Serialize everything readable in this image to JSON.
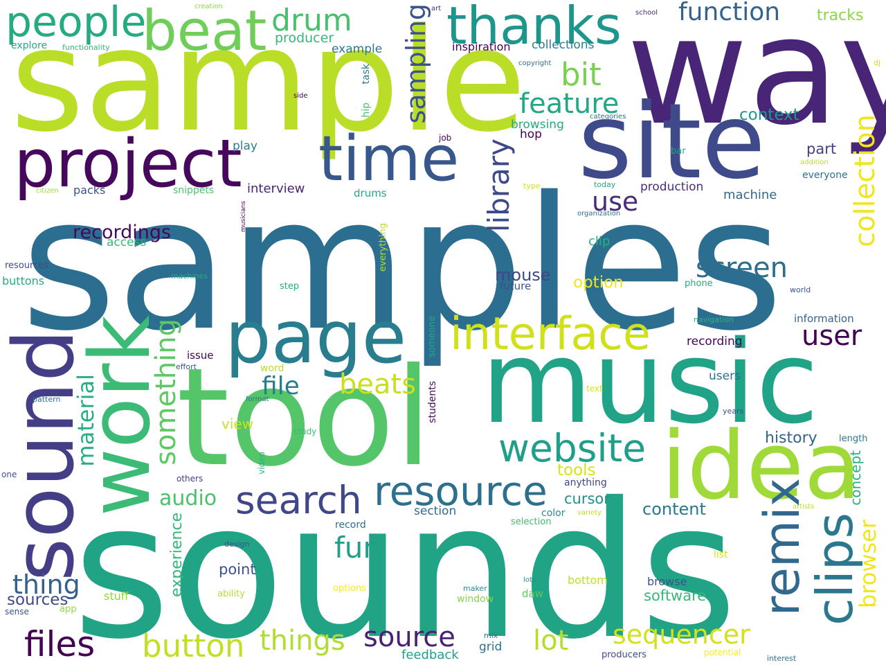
{
  "words": [
    {
      "text": "samples",
      "color": "#2c6e8f"
    },
    {
      "text": "sounds",
      "color": "#21a386"
    },
    {
      "text": "sample",
      "color": "#bade28"
    },
    {
      "text": "tool",
      "color": "#54c568"
    },
    {
      "text": "way",
      "color": "#482576"
    },
    {
      "text": "music",
      "color": "#20a386"
    },
    {
      "text": "site",
      "color": "#3e4a89"
    },
    {
      "text": "idea",
      "color": "#a0da39"
    },
    {
      "text": "work",
      "color": "#3bbb75"
    },
    {
      "text": "sound",
      "color": "#433e85"
    },
    {
      "text": "project",
      "color": "#46085c"
    },
    {
      "text": "page",
      "color": "#287d8e"
    },
    {
      "text": "time",
      "color": "#38588c"
    },
    {
      "text": "thanks",
      "color": "#1f968b"
    },
    {
      "text": "beat",
      "color": "#6ece58"
    },
    {
      "text": "people",
      "color": "#25ab82"
    },
    {
      "text": "remix",
      "color": "#31688e"
    },
    {
      "text": "clips",
      "color": "#2a788e"
    },
    {
      "text": "interface",
      "color": "#d0e11c"
    },
    {
      "text": "resource",
      "color": "#2d708e"
    },
    {
      "text": "search",
      "color": "#3f4788"
    },
    {
      "text": "website",
      "color": "#1f9e89"
    },
    {
      "text": "files",
      "color": "#440154"
    },
    {
      "text": "button",
      "color": "#c2df23"
    },
    {
      "text": "drum",
      "color": "#48c16e"
    },
    {
      "text": "feature",
      "color": "#22a884"
    },
    {
      "text": "bit",
      "color": "#7ad151"
    },
    {
      "text": "function",
      "color": "#33638d"
    },
    {
      "text": "sampling",
      "color": "#3b528b"
    },
    {
      "text": "library",
      "color": "#3e4989"
    },
    {
      "text": "collection",
      "color": "#f1e51d"
    },
    {
      "text": "screen",
      "color": "#2f6c8e"
    },
    {
      "text": "user",
      "color": "#440154"
    },
    {
      "text": "use",
      "color": "#472c7a"
    },
    {
      "text": "something",
      "color": "#5ec962"
    },
    {
      "text": "material",
      "color": "#26ad81"
    },
    {
      "text": "beats",
      "color": "#c8e020"
    },
    {
      "text": "file",
      "color": "#277f8e"
    },
    {
      "text": "fun",
      "color": "#1fa187"
    },
    {
      "text": "source",
      "color": "#482374"
    },
    {
      "text": "sequencer",
      "color": "#d2e21b"
    },
    {
      "text": "lot",
      "color": "#b5de2b"
    },
    {
      "text": "things",
      "color": "#b0dd2f"
    },
    {
      "text": "thing",
      "color": "#34618d"
    },
    {
      "text": "audio",
      "color": "#4ac16d"
    },
    {
      "text": "browser",
      "color": "#f1e51d"
    },
    {
      "text": "recordings",
      "color": "#46085c"
    },
    {
      "text": "experience",
      "color": "#35b779"
    },
    {
      "text": "sources",
      "color": "#3e4989"
    },
    {
      "text": "history",
      "color": "#33638d"
    },
    {
      "text": "tools",
      "color": "#d5e21a"
    },
    {
      "text": "content",
      "color": "#2a788e"
    },
    {
      "text": "mouse",
      "color": "#3f4788"
    },
    {
      "text": "context",
      "color": "#1f988b"
    },
    {
      "text": "part",
      "color": "#424086"
    },
    {
      "text": "tracks",
      "color": "#8bd646"
    },
    {
      "text": "option",
      "color": "#f1e51d"
    },
    {
      "text": "cursor",
      "color": "#218f8d"
    },
    {
      "text": "point",
      "color": "#3b528b"
    },
    {
      "text": "software",
      "color": "#37b878"
    },
    {
      "text": "concept",
      "color": "#2cb17e"
    },
    {
      "text": "producer",
      "color": "#35b779"
    },
    {
      "text": "view",
      "color": "#cae11f"
    },
    {
      "text": "machine",
      "color": "#31688e"
    },
    {
      "text": "production",
      "color": "#472f7d"
    },
    {
      "text": "collections",
      "color": "#26818e"
    },
    {
      "text": "example",
      "color": "#2a788e"
    },
    {
      "text": "inspiration",
      "color": "#440154"
    },
    {
      "text": "interview",
      "color": "#482475"
    },
    {
      "text": "recording",
      "color": "#450559"
    },
    {
      "text": "users",
      "color": "#2d708e"
    },
    {
      "text": "browsing",
      "color": "#25ab82"
    },
    {
      "text": "hop",
      "color": "#440154"
    },
    {
      "text": "play",
      "color": "#287d8e"
    },
    {
      "text": "clip",
      "color": "#29af7f"
    },
    {
      "text": "grid",
      "color": "#2c728e"
    },
    {
      "text": "feedback",
      "color": "#1fa088"
    },
    {
      "text": "drums",
      "color": "#22a884"
    },
    {
      "text": "buttons",
      "color": "#25ac82"
    },
    {
      "text": "packs",
      "color": "#3b528b"
    },
    {
      "text": "access",
      "color": "#35b779"
    },
    {
      "text": "section",
      "color": "#2e6e8e"
    },
    {
      "text": "tab",
      "color": "#2d708e"
    },
    {
      "text": "stuff",
      "color": "#8fd744"
    },
    {
      "text": "snippets",
      "color": "#4ec36b"
    },
    {
      "text": "everything",
      "color": "#b8de29"
    },
    {
      "text": "someone",
      "color": "#22a785"
    },
    {
      "text": "students",
      "color": "#46085c"
    },
    {
      "text": "future",
      "color": "#3b528b"
    },
    {
      "text": "color",
      "color": "#21918c"
    },
    {
      "text": "daw",
      "color": "#5ec962"
    },
    {
      "text": "bottom",
      "color": "#c0df25"
    },
    {
      "text": "browse",
      "color": "#3b528b"
    },
    {
      "text": "anything",
      "color": "#3f4788"
    },
    {
      "text": "everyone",
      "color": "#2d708e"
    },
    {
      "text": "explore",
      "color": "#22a785"
    },
    {
      "text": "functionality",
      "color": "#35b779"
    },
    {
      "text": "issue",
      "color": "#440154"
    },
    {
      "text": "word",
      "color": "#b8de29"
    },
    {
      "text": "information",
      "color": "#33638d"
    },
    {
      "text": "window",
      "color": "#84d44b"
    },
    {
      "text": "record",
      "color": "#2e6e8e"
    },
    {
      "text": "hip",
      "color": "#48c16e"
    },
    {
      "text": "task",
      "color": "#2a788e"
    },
    {
      "text": "length",
      "color": "#2a788e"
    },
    {
      "text": "selection",
      "color": "#3dbc74"
    },
    {
      "text": "list",
      "color": "#d2e21b"
    },
    {
      "text": "resources",
      "color": "#3e4a89"
    },
    {
      "text": "sense",
      "color": "#3b528b"
    },
    {
      "text": "app",
      "color": "#93d741"
    },
    {
      "text": "phone",
      "color": "#25ac82"
    },
    {
      "text": "step",
      "color": "#27ad81"
    },
    {
      "text": "others",
      "color": "#424086"
    },
    {
      "text": "video",
      "color": "#2db27d"
    },
    {
      "text": "study",
      "color": "#3dbc74"
    },
    {
      "text": "ability",
      "color": "#b5de2b"
    },
    {
      "text": "options",
      "color": "#fde725"
    },
    {
      "text": "machines",
      "color": "#26ad81"
    },
    {
      "text": "producers",
      "color": "#3e4a89"
    },
    {
      "text": "interest",
      "color": "#2c728e"
    },
    {
      "text": "potential",
      "color": "#fde725"
    },
    {
      "text": "mix",
      "color": "#2c728e"
    },
    {
      "text": "maker",
      "color": "#21918c"
    },
    {
      "text": "lots",
      "color": "#21918c"
    },
    {
      "text": "text",
      "color": "#d8e219"
    },
    {
      "text": "years",
      "color": "#3b528b"
    },
    {
      "text": "variety",
      "color": "#bddf26"
    },
    {
      "text": "artists",
      "color": "#bddf26"
    },
    {
      "text": "navigation",
      "color": "#2db27d"
    },
    {
      "text": "world",
      "color": "#3b528b"
    },
    {
      "text": "today",
      "color": "#22a884"
    },
    {
      "text": "organization",
      "color": "#2e6e8e"
    },
    {
      "text": "type",
      "color": "#d0e11c"
    },
    {
      "text": "addition",
      "color": "#b5de2b"
    },
    {
      "text": "bar",
      "color": "#22a884"
    },
    {
      "text": "categories",
      "color": "#2c728e"
    },
    {
      "text": "copyright",
      "color": "#2c728e"
    },
    {
      "text": "school",
      "color": "#482878"
    },
    {
      "text": "art",
      "color": "#472c7a"
    },
    {
      "text": "creation",
      "color": "#8fd744"
    },
    {
      "text": "side",
      "color": "#440154"
    },
    {
      "text": "job",
      "color": "#440154"
    },
    {
      "text": "citizen",
      "color": "#a2da37"
    },
    {
      "text": "musicians",
      "color": "#440154"
    },
    {
      "text": "effort",
      "color": "#3b528b"
    },
    {
      "text": "format",
      "color": "#2c728e"
    },
    {
      "text": "pattern",
      "color": "#2c728e"
    },
    {
      "text": "design",
      "color": "#3b528b"
    },
    {
      "text": "one",
      "color": "#3b528b"
    },
    {
      "text": "dj",
      "color": "#c8e020"
    }
  ]
}
